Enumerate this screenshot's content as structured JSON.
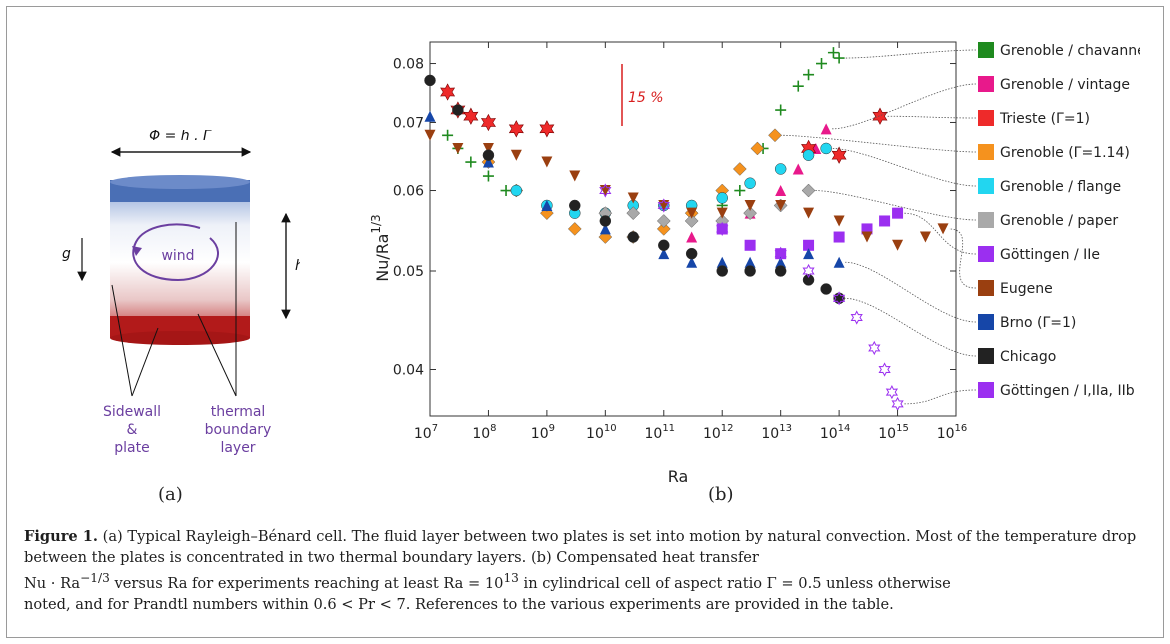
{
  "panel_a": {
    "phi_label": "Φ = h . Γ",
    "g_label": "g",
    "h_label": "h",
    "wind_label": "wind",
    "sidewall_label": [
      "Sidewall",
      "&",
      "plate"
    ],
    "bl_label": [
      "thermal",
      "boundary",
      "layer"
    ],
    "sublabel": "(a)",
    "colors": {
      "top": "#4a6fb5",
      "bottom": "#b21a1a",
      "wind": "#6b3fa0"
    }
  },
  "panel_b": {
    "sublabel": "(b)",
    "annotation": "15 %",
    "annotation_color": "#d81e1e"
  },
  "chart_data": {
    "type": "scatter",
    "x_scale": "log",
    "y_scale": "log",
    "xlabel": "Ra",
    "ylabel": "Nu/Ra",
    "ylabel_sup": "1/3",
    "xlim": [
      10000000.0,
      1e+16
    ],
    "ylim": [
      0.036,
      0.084
    ],
    "xticks": [
      {
        "base": "10",
        "exp": "7",
        "value": 10000000.0
      },
      {
        "base": "10",
        "exp": "8",
        "value": 100000000.0
      },
      {
        "base": "10",
        "exp": "9",
        "value": 1000000000.0
      },
      {
        "base": "10",
        "exp": "10",
        "value": 10000000000.0
      },
      {
        "base": "10",
        "exp": "11",
        "value": 100000000000.0
      },
      {
        "base": "10",
        "exp": "12",
        "value": 1000000000000.0
      },
      {
        "base": "10",
        "exp": "13",
        "value": 10000000000000.0
      },
      {
        "base": "10",
        "exp": "14",
        "value": 100000000000000.0
      },
      {
        "base": "10",
        "exp": "15",
        "value": 1000000000000000.0
      },
      {
        "base": "10",
        "exp": "16",
        "value": 1e+16
      }
    ],
    "yticks": [
      {
        "label": "0.04",
        "value": 0.04
      },
      {
        "label": "0.05",
        "value": 0.05
      },
      {
        "label": "0.06",
        "value": 0.06
      },
      {
        "label": "0.07",
        "value": 0.07
      },
      {
        "label": "0.08",
        "value": 0.08
      }
    ],
    "legend": "right",
    "series": [
      {
        "name": "Grenoble / chavanne",
        "color": "#1f8a1f",
        "marker": "plus",
        "x": [
          20000000.0,
          30000000.0,
          50000000.0,
          100000000.0,
          200000000.0,
          1000000000000.0,
          2000000000000.0,
          5000000000000.0,
          10000000000000.0,
          20000000000000.0,
          30000000000000.0,
          50000000000000.0,
          80000000000000.0,
          100000000000000.0
        ],
        "y": [
          0.068,
          0.066,
          0.064,
          0.062,
          0.06,
          0.058,
          0.06,
          0.066,
          0.072,
          0.076,
          0.078,
          0.08,
          0.082,
          0.081
        ]
      },
      {
        "name": "Grenoble / vintage",
        "color": "#e8198b",
        "marker": "triangle",
        "x": [
          300000000000.0,
          1000000000000.0,
          3000000000000.0,
          10000000000000.0,
          20000000000000.0,
          40000000000000.0,
          60000000000000.0
        ],
        "y": [
          0.054,
          0.055,
          0.057,
          0.06,
          0.063,
          0.066,
          0.069
        ]
      },
      {
        "name": "Trieste (Γ=1)",
        "color": "#ee2a2a",
        "marker": "star",
        "x": [
          20000000.0,
          30000000.0,
          50000000.0,
          100000000.0,
          300000000.0,
          1000000000.0,
          30000000000000.0,
          100000000000000.0,
          500000000000000.0
        ],
        "y": [
          0.075,
          0.072,
          0.071,
          0.07,
          0.069,
          0.069,
          0.066,
          0.065,
          0.071
        ]
      },
      {
        "name": "Grenoble (Γ=1.14)",
        "color": "#f5921e",
        "marker": "diamond",
        "x": [
          100000000.0,
          300000000.0,
          1000000000.0,
          3000000000.0,
          10000000000.0,
          30000000000.0,
          100000000000.0,
          300000000000.0,
          1000000000000.0,
          2000000000000.0,
          4000000000000.0,
          8000000000000.0
        ],
        "y": [
          0.064,
          0.06,
          0.057,
          0.055,
          0.054,
          0.054,
          0.055,
          0.057,
          0.06,
          0.063,
          0.066,
          0.068
        ]
      },
      {
        "name": "Grenoble / flange",
        "color": "#22d6f0",
        "marker": "circle",
        "x": [
          300000000.0,
          1000000000.0,
          3000000000.0,
          10000000000.0,
          30000000000.0,
          100000000000.0,
          300000000000.0,
          1000000000000.0,
          3000000000000.0,
          10000000000000.0,
          30000000000000.0,
          60000000000000.0
        ],
        "y": [
          0.06,
          0.058,
          0.057,
          0.057,
          0.058,
          0.058,
          0.058,
          0.059,
          0.061,
          0.063,
          0.065,
          0.066
        ]
      },
      {
        "name": "Grenoble / paper",
        "color": "#a9a9a9",
        "marker": "diamond",
        "x": [
          10000000000.0,
          30000000000.0,
          100000000000.0,
          300000000000.0,
          1000000000000.0,
          3000000000000.0,
          10000000000000.0,
          30000000000000.0
        ],
        "y": [
          0.057,
          0.057,
          0.056,
          0.056,
          0.056,
          0.057,
          0.058,
          0.06
        ]
      },
      {
        "name": "Göttingen / IIe",
        "color": "#9b2ff0",
        "marker": "square",
        "x": [
          1000000000000.0,
          3000000000000.0,
          10000000000000.0,
          30000000000000.0,
          100000000000000.0,
          300000000000000.0,
          600000000000000.0,
          1000000000000000.0
        ],
        "y": [
          0.055,
          0.053,
          0.052,
          0.053,
          0.054,
          0.055,
          0.056,
          0.057
        ]
      },
      {
        "name": "Eugene",
        "color": "#9a3f10",
        "marker": "triangle-down",
        "x": [
          10000000.0,
          30000000.0,
          100000000.0,
          300000000.0,
          1000000000.0,
          3000000000.0,
          10000000000.0,
          30000000000.0,
          100000000000.0,
          300000000000.0,
          1000000000000.0,
          3000000000000.0,
          10000000000000.0,
          30000000000000.0,
          100000000000000.0,
          300000000000000.0,
          1000000000000000.0,
          3000000000000000.0,
          6000000000000000.0
        ],
        "y": [
          0.068,
          0.066,
          0.066,
          0.065,
          0.064,
          0.062,
          0.06,
          0.059,
          0.058,
          0.057,
          0.057,
          0.058,
          0.058,
          0.057,
          0.056,
          0.054,
          0.053,
          0.054,
          0.055
        ]
      },
      {
        "name": "Brno (Γ=1)",
        "color": "#1646a8",
        "marker": "triangle",
        "x": [
          10000000.0,
          100000000.0,
          1000000000.0,
          10000000000.0,
          100000000000.0,
          300000000000.0,
          1000000000000.0,
          3000000000000.0,
          10000000000000.0,
          30000000000000.0,
          100000000000000.0
        ],
        "y": [
          0.071,
          0.064,
          0.058,
          0.055,
          0.052,
          0.051,
          0.051,
          0.051,
          0.051,
          0.052,
          0.051
        ]
      },
      {
        "name": "Chicago",
        "color": "#222222",
        "marker": "circle",
        "x": [
          10000000.0,
          30000000.0,
          100000000.0,
          3000000000.0,
          10000000000.0,
          30000000000.0,
          100000000000.0,
          300000000000.0,
          1000000000000.0,
          3000000000000.0,
          10000000000000.0,
          30000000000000.0,
          60000000000000.0,
          100000000000000.0
        ],
        "y": [
          0.077,
          0.072,
          0.065,
          0.058,
          0.056,
          0.054,
          0.053,
          0.052,
          0.05,
          0.05,
          0.05,
          0.049,
          0.048,
          0.047
        ]
      },
      {
        "name": "Göttingen / I,IIa, IIb",
        "color": "#9b2ff0",
        "marker": "star-open",
        "x": [
          10000000000.0,
          100000000000.0,
          1000000000000.0,
          10000000000000.0,
          30000000000000.0,
          100000000000000.0,
          200000000000000.0,
          400000000000000.0,
          600000000000000.0,
          800000000000000.0,
          1000000000000000.0
        ],
        "y": [
          0.06,
          0.058,
          0.055,
          0.052,
          0.05,
          0.047,
          0.045,
          0.042,
          0.04,
          0.038,
          0.037
        ]
      }
    ]
  },
  "caption": {
    "fig": "Figure 1.",
    "text_a": "(a) Typical Rayleigh–Bénard cell. The fluid layer between two plates is set into motion by natural convection. Most of the temperature drop between the plates is concentrated in two thermal boundary layers. (b) Compensated heat transfer",
    "line2_pre": "Nu · Ra",
    "line2_exp": "−1/3",
    "line2_mid": " versus Ra for experiments reaching at least Ra = 10",
    "line2_exp2": "13",
    "line2_post": " in cylindrical cell of aspect ratio Γ = 0.5 unless otherwise",
    "line3": "noted, and for Prandtl numbers within 0.6 < Pr < 7. References to the various experiments are provided in the table."
  }
}
